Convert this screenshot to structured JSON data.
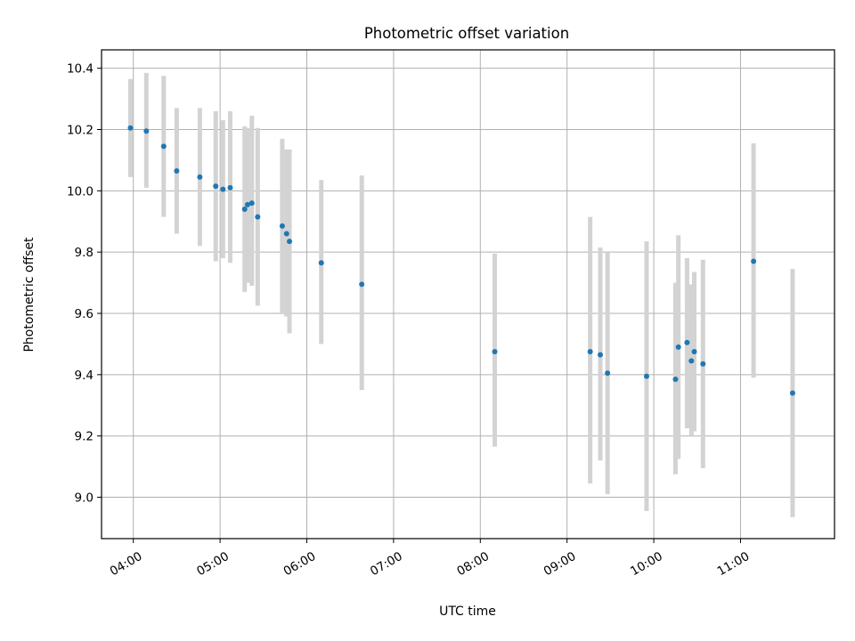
{
  "chart_data": {
    "type": "scatter",
    "title": "Photometric offset variation",
    "xlabel": "UTC time",
    "ylabel": "Photometric offset",
    "x_axis_type": "time",
    "xlim": [
      "03:38",
      "12:05"
    ],
    "ylim": [
      8.865,
      10.46
    ],
    "grid": true,
    "x_ticks": [
      "04:00",
      "05:00",
      "06:00",
      "07:00",
      "08:00",
      "09:00",
      "10:00",
      "11:00"
    ],
    "y_ticks": [
      9.0,
      9.2,
      9.4,
      9.6,
      9.8,
      10.0,
      10.2,
      10.4
    ],
    "y_tick_labels": [
      "9.0",
      "9.2",
      "9.4",
      "9.6",
      "9.8",
      "10.0",
      "10.2",
      "10.4"
    ],
    "marker_color": "#1f77b4",
    "errorbar_color": "#d3d3d3",
    "points": [
      {
        "t": "03:58",
        "y": 10.205,
        "lo": 10.045,
        "hi": 10.365
      },
      {
        "t": "04:09",
        "y": 10.195,
        "lo": 10.01,
        "hi": 10.385
      },
      {
        "t": "04:21",
        "y": 10.145,
        "lo": 9.915,
        "hi": 10.375
      },
      {
        "t": "04:30",
        "y": 10.065,
        "lo": 9.86,
        "hi": 10.27
      },
      {
        "t": "04:46",
        "y": 10.045,
        "lo": 9.82,
        "hi": 10.27
      },
      {
        "t": "04:57",
        "y": 10.015,
        "lo": 9.77,
        "hi": 10.26
      },
      {
        "t": "05:02",
        "y": 10.005,
        "lo": 9.78,
        "hi": 10.23
      },
      {
        "t": "05:07",
        "y": 10.01,
        "lo": 9.765,
        "hi": 10.26
      },
      {
        "t": "05:17",
        "y": 9.94,
        "lo": 9.67,
        "hi": 10.21
      },
      {
        "t": "05:19",
        "y": 9.955,
        "lo": 9.7,
        "hi": 10.205
      },
      {
        "t": "05:22",
        "y": 9.96,
        "lo": 9.69,
        "hi": 10.245
      },
      {
        "t": "05:26",
        "y": 9.915,
        "lo": 9.625,
        "hi": 10.205
      },
      {
        "t": "05:43",
        "y": 9.885,
        "lo": 9.6,
        "hi": 10.17
      },
      {
        "t": "05:46",
        "y": 9.86,
        "lo": 9.59,
        "hi": 10.135
      },
      {
        "t": "05:48",
        "y": 9.835,
        "lo": 9.535,
        "hi": 10.135
      },
      {
        "t": "06:10",
        "y": 9.765,
        "lo": 9.5,
        "hi": 10.035
      },
      {
        "t": "06:38",
        "y": 9.695,
        "lo": 9.35,
        "hi": 10.05
      },
      {
        "t": "08:10",
        "y": 9.475,
        "lo": 9.165,
        "hi": 9.795
      },
      {
        "t": "09:16",
        "y": 9.475,
        "lo": 9.045,
        "hi": 9.915
      },
      {
        "t": "09:23",
        "y": 9.465,
        "lo": 9.12,
        "hi": 9.815
      },
      {
        "t": "09:28",
        "y": 9.405,
        "lo": 9.01,
        "hi": 9.8
      },
      {
        "t": "09:55",
        "y": 9.395,
        "lo": 8.955,
        "hi": 9.835
      },
      {
        "t": "10:15",
        "y": 9.385,
        "lo": 9.075,
        "hi": 9.7
      },
      {
        "t": "10:17",
        "y": 9.49,
        "lo": 9.125,
        "hi": 9.855
      },
      {
        "t": "10:23",
        "y": 9.505,
        "lo": 9.225,
        "hi": 9.78
      },
      {
        "t": "10:26",
        "y": 9.445,
        "lo": 9.2,
        "hi": 9.695
      },
      {
        "t": "10:28",
        "y": 9.475,
        "lo": 9.215,
        "hi": 9.735
      },
      {
        "t": "10:34",
        "y": 9.435,
        "lo": 9.095,
        "hi": 9.775
      },
      {
        "t": "11:09",
        "y": 9.77,
        "lo": 9.39,
        "hi": 10.155
      },
      {
        "t": "11:36",
        "y": 9.34,
        "lo": 8.935,
        "hi": 9.745
      }
    ]
  }
}
